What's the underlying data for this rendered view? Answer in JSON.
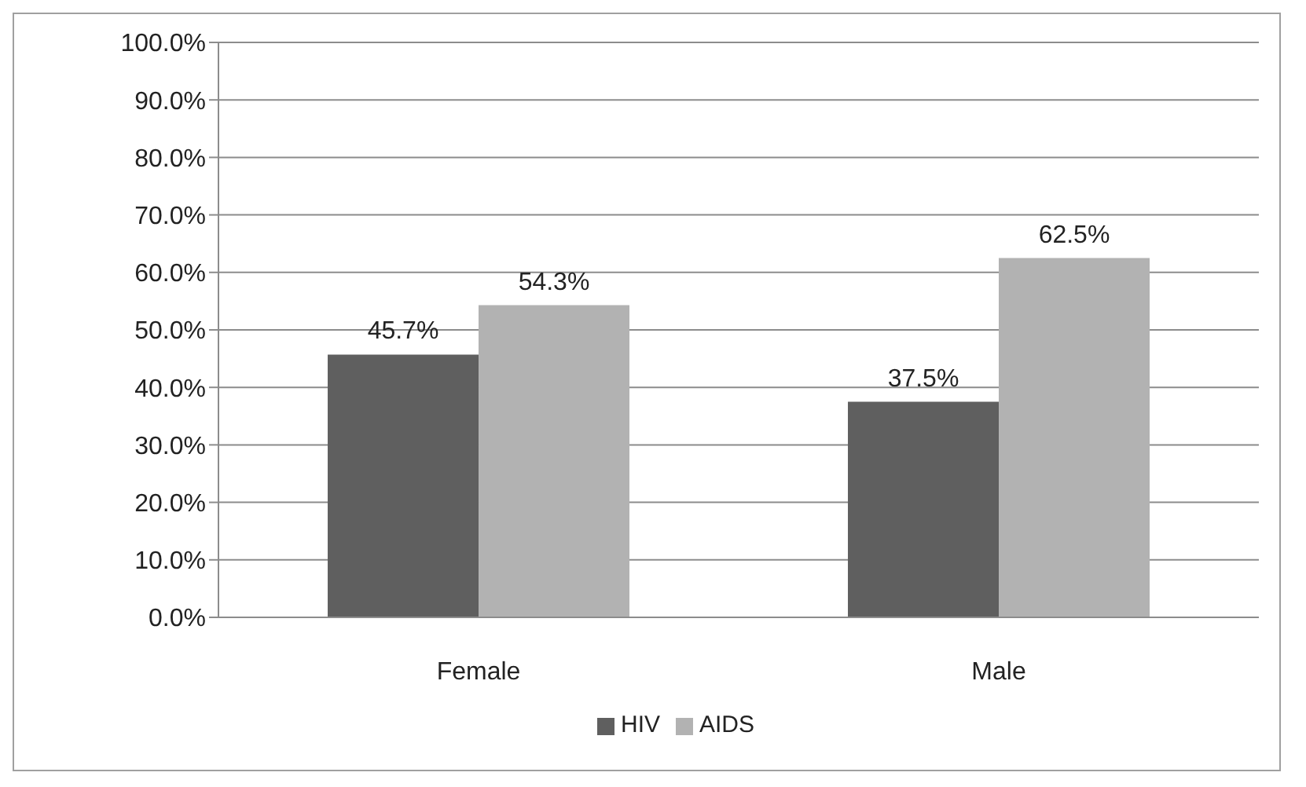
{
  "chart_data": {
    "type": "bar",
    "categories": [
      "Female",
      "Male"
    ],
    "series": [
      {
        "name": "HIV",
        "color": "#5f5f5f",
        "values": [
          45.7,
          37.5
        ],
        "value_labels": [
          "45.7%",
          "37.5%"
        ]
      },
      {
        "name": "AIDS",
        "color": "#b2b2b2",
        "values": [
          54.3,
          62.5
        ],
        "value_labels": [
          "54.3%",
          "62.5%"
        ]
      }
    ],
    "ylim": [
      0,
      100
    ],
    "yticks": [
      {
        "value": 0,
        "label": "0.0%"
      },
      {
        "value": 10,
        "label": "10.0%"
      },
      {
        "value": 20,
        "label": "20.0%"
      },
      {
        "value": 30,
        "label": "30.0%"
      },
      {
        "value": 40,
        "label": "40.0%"
      },
      {
        "value": 50,
        "label": "50.0%"
      },
      {
        "value": 60,
        "label": "60.0%"
      },
      {
        "value": 70,
        "label": "70.0%"
      },
      {
        "value": 80,
        "label": "80.0%"
      },
      {
        "value": 90,
        "label": "90.0%"
      },
      {
        "value": 100,
        "label": "100.0%"
      }
    ],
    "grid": "y",
    "legend": "bottom"
  }
}
